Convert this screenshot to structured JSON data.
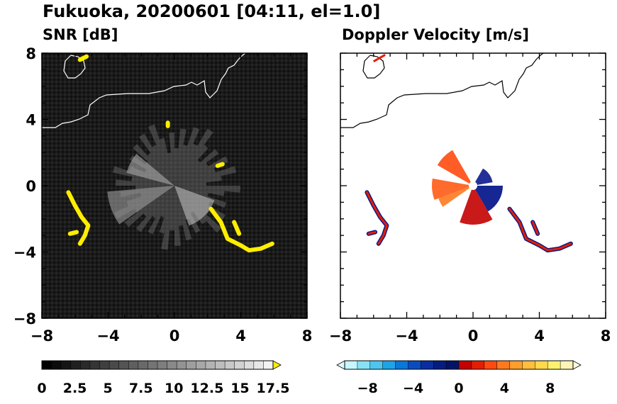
{
  "title": "Fukuoka, 20200601 [04:11, el=1.0]",
  "chart_data": [
    {
      "type": "heatmap",
      "title": "SNR [dB]",
      "x_ticks": [
        "−8",
        "−4",
        "0",
        "4",
        "8"
      ],
      "y_ticks": [
        "8",
        "4",
        "0",
        "−4",
        "−8"
      ],
      "xlim": [
        -8,
        8
      ],
      "ylim": [
        -8,
        8
      ],
      "colorbar": {
        "ticks": [
          "0",
          "2.5",
          "5",
          "7.5",
          "10",
          "12.5",
          "15",
          "17.5"
        ],
        "tick_values": [
          0,
          2.5,
          5,
          7.5,
          10,
          12.5,
          15,
          17.5
        ],
        "range": [
          0,
          17.5
        ],
        "colors_from": "#000000",
        "colors_to": "#f2f2f2",
        "over_color": "#ffee00"
      },
      "echo_color": "#ffee00",
      "coastline_color": "#ffffff"
    },
    {
      "type": "heatmap",
      "title": "Doppler Velocity [m/s]",
      "x_ticks": [
        "−8",
        "−4",
        "0",
        "4",
        "8"
      ],
      "y_ticks": [],
      "xlim": [
        -8,
        8
      ],
      "ylim": [
        -8,
        8
      ],
      "colorbar": {
        "ticks": [
          "−8",
          "−4",
          "0",
          "4",
          "8"
        ],
        "tick_values": [
          -8,
          -4,
          0,
          4,
          8
        ],
        "range": [
          -10,
          10
        ],
        "colors": [
          "#c6f6ff",
          "#88e2f5",
          "#4cc6ee",
          "#1ea4e6",
          "#0a78d8",
          "#0a4cc0",
          "#0a2ea0",
          "#061c80",
          "#041464",
          "#c40000",
          "#e41e00",
          "#ff4a10",
          "#ff7a1e",
          "#ff9e2c",
          "#ffbe3c",
          "#ffd84c",
          "#fff070",
          "#fff4b8"
        ]
      },
      "approach_color": "#0a1a8c",
      "recede_color": "#ff4a10",
      "coastline_color": "#000000"
    }
  ]
}
